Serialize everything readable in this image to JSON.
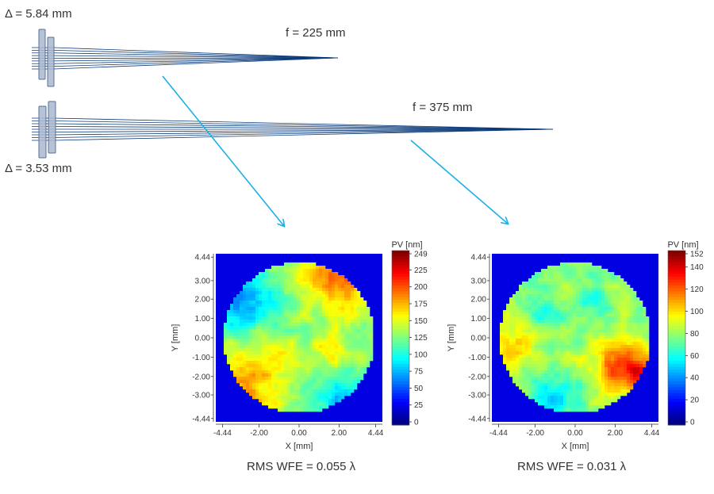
{
  "diagram": {
    "top_system": {
      "delta_label": "Δ = 5.84 mm",
      "focal_label": "f = 225 mm"
    },
    "bottom_system": {
      "delta_label": "Δ = 3.53 mm",
      "focal_label": "f = 375 mm"
    },
    "ray_color": "#0a3a7a",
    "lens_color": "#a9b8d0",
    "arrow_color": "#1ab0e8"
  },
  "chart_data": [
    {
      "type": "heatmap",
      "xlabel": "X [mm]",
      "ylabel": "Y [mm]",
      "x_ticks": [
        "-4.44",
        "-2.00",
        "0.00",
        "2.00",
        "4.44"
      ],
      "y_ticks": [
        "4.44",
        "3.00",
        "2.00",
        "1.00",
        "0.00",
        "-1.00",
        "-2.00",
        "-3.00",
        "-4.44"
      ],
      "colorbar_title": "PV [nm]",
      "colorbar_ticks": [
        "249",
        "225",
        "200",
        "175",
        "150",
        "125",
        "100",
        "75",
        "50",
        "25",
        "0"
      ],
      "colorbar_range": [
        0,
        249
      ],
      "colormap": "jet",
      "caption": "RMS WFE = 0.055 λ"
    },
    {
      "type": "heatmap",
      "xlabel": "X [mm]",
      "ylabel": "Y [mm]",
      "x_ticks": [
        "-4.44",
        "-2.00",
        "0.00",
        "2.00",
        "4.44"
      ],
      "y_ticks": [
        "4.44",
        "3.00",
        "2.00",
        "1.00",
        "0.00",
        "-1.00",
        "-2.00",
        "-3.00",
        "-4.44"
      ],
      "colorbar_title": "PV [nm]",
      "colorbar_ticks": [
        "152",
        "140",
        "120",
        "100",
        "80",
        "60",
        "40",
        "20",
        "0"
      ],
      "colorbar_range": [
        0,
        152
      ],
      "colormap": "jet",
      "caption": "RMS WFE = 0.031 λ"
    }
  ]
}
